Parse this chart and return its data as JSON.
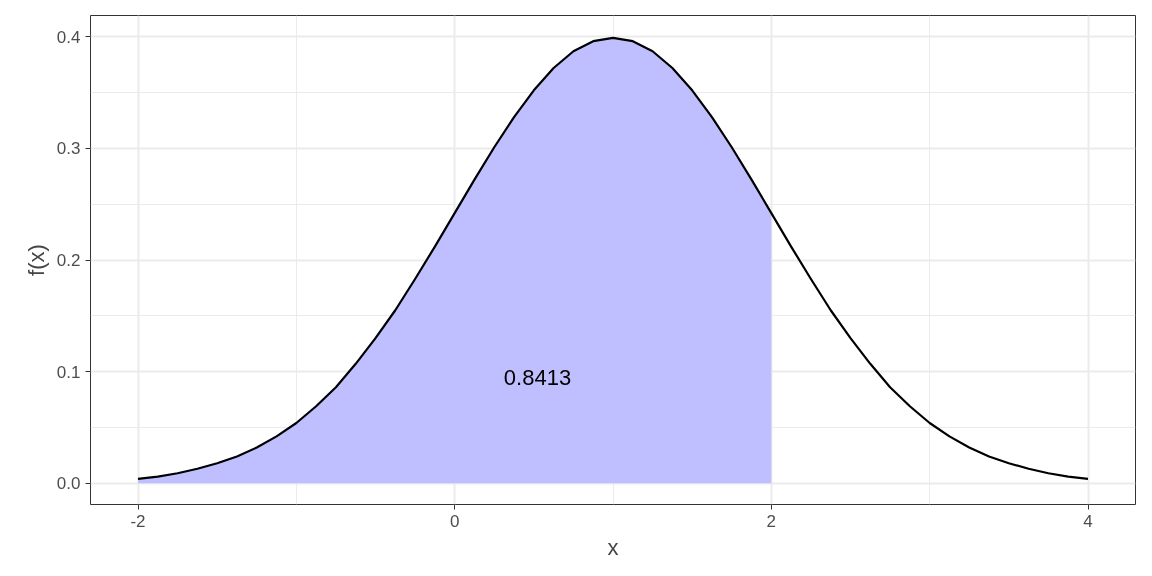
{
  "chart_data": {
    "type": "line",
    "xlabel": "x",
    "ylabel": "f(x)",
    "series": [
      {
        "type": "area",
        "color": "#bfbfff",
        "x": [
          -2,
          -1.875,
          -1.75,
          -1.625,
          -1.5,
          -1.375,
          -1.25,
          -1.125,
          -1,
          -0.875,
          -0.75,
          -0.625,
          -0.5,
          -0.375,
          -0.25,
          -0.125,
          0,
          0.125,
          0.25,
          0.375,
          0.5,
          0.625,
          0.75,
          0.875,
          1,
          1.125,
          1.25,
          1.375,
          1.5,
          1.625,
          1.75,
          1.875,
          2
        ],
        "values": [
          0.004,
          0.006,
          0.009,
          0.013,
          0.018,
          0.024,
          0.032,
          0.042,
          0.054,
          0.069,
          0.086,
          0.107,
          0.13,
          0.155,
          0.183,
          0.212,
          0.242,
          0.272,
          0.301,
          0.328,
          0.352,
          0.372,
          0.387,
          0.396,
          0.399,
          0.396,
          0.387,
          0.372,
          0.352,
          0.328,
          0.301,
          0.272,
          0.242
        ]
      },
      {
        "color": "#000000",
        "x": [
          -2,
          -1.875,
          -1.75,
          -1.625,
          -1.5,
          -1.375,
          -1.25,
          -1.125,
          -1,
          -0.875,
          -0.75,
          -0.625,
          -0.5,
          -0.375,
          -0.25,
          -0.125,
          0,
          0.125,
          0.25,
          0.375,
          0.5,
          0.625,
          0.75,
          0.875,
          1,
          1.125,
          1.25,
          1.375,
          1.5,
          1.625,
          1.75,
          1.875,
          2,
          2.125,
          2.25,
          2.375,
          2.5,
          2.625,
          2.75,
          2.875,
          3,
          3.125,
          3.25,
          3.375,
          3.5,
          3.625,
          3.75,
          3.875,
          4
        ],
        "values": [
          0.004,
          0.006,
          0.009,
          0.013,
          0.018,
          0.024,
          0.032,
          0.042,
          0.054,
          0.069,
          0.086,
          0.107,
          0.13,
          0.155,
          0.183,
          0.212,
          0.242,
          0.272,
          0.301,
          0.328,
          0.352,
          0.372,
          0.387,
          0.396,
          0.399,
          0.396,
          0.387,
          0.372,
          0.352,
          0.328,
          0.301,
          0.272,
          0.242,
          0.212,
          0.183,
          0.155,
          0.13,
          0.107,
          0.086,
          0.069,
          0.054,
          0.042,
          0.032,
          0.024,
          0.018,
          0.013,
          0.009,
          0.006,
          0.004
        ]
      }
    ],
    "annotations": [
      "0.8413"
    ],
    "xlim": [
      -2.3,
      4.3
    ],
    "ylim": [
      -0.019,
      0.419
    ],
    "xticks": [
      -2,
      0,
      2,
      4
    ],
    "yticks": [
      {
        "value": 0,
        "label": "0.0"
      },
      {
        "value": 0.1,
        "label": "0.1"
      },
      {
        "value": 0.2,
        "label": "0.2"
      },
      {
        "value": 0.3,
        "label": "0.3"
      },
      {
        "value": 0.4,
        "label": "0.4"
      }
    ],
    "grid": true
  }
}
